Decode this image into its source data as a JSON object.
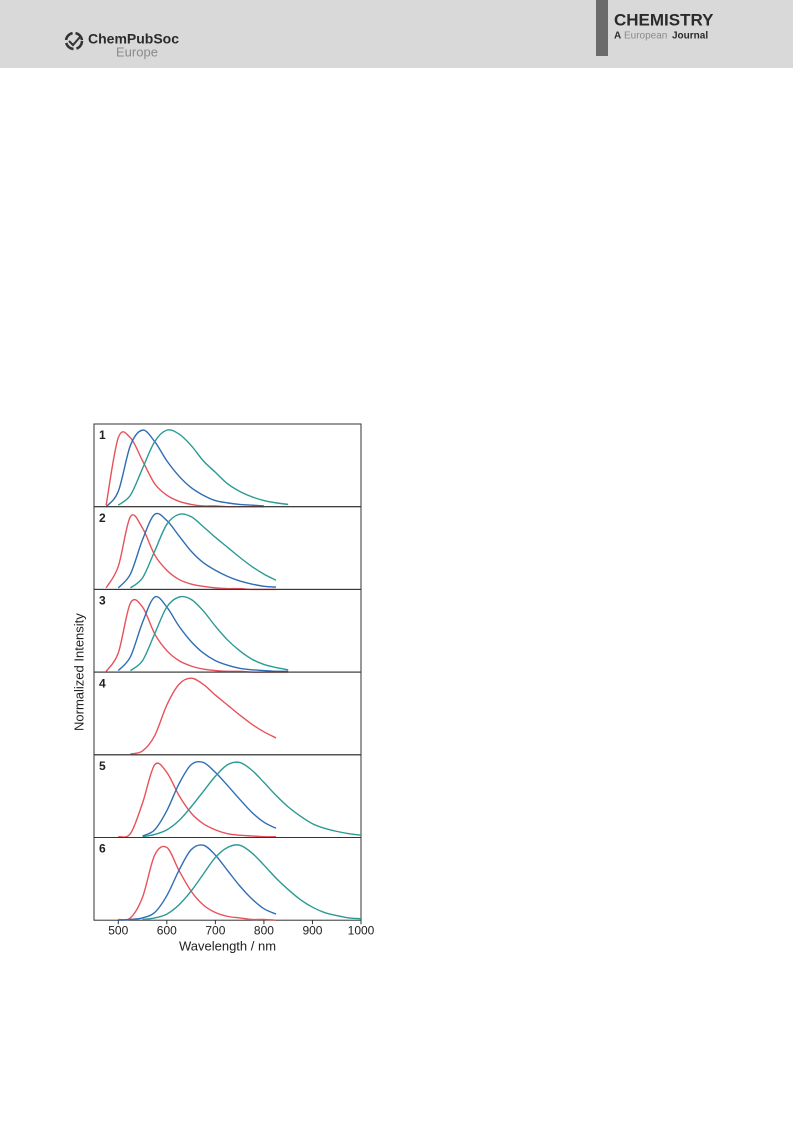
{
  "header": {
    "publisher": "ChemPubSoc",
    "publisher_sub": "Europe",
    "journal": "CHEMISTRY",
    "journal_a": "A",
    "journal_b": "European",
    "journal_c": "Journal"
  },
  "chart_data": [
    {
      "type": "line",
      "title": "1",
      "xlim": [
        450,
        1000
      ],
      "ylim": [
        0,
        1.08
      ],
      "x": [
        475,
        500,
        525,
        550,
        575,
        600,
        625,
        650,
        675,
        700,
        725,
        750,
        775,
        800,
        825,
        850,
        875,
        900,
        925,
        950,
        975,
        1000
      ],
      "series": [
        {
          "color": "#e8525a",
          "values": [
            0.02,
            0.9,
            0.9,
            0.6,
            0.3,
            0.15,
            0.07,
            0.03,
            0.01,
            0.01,
            0,
            0,
            0,
            0,
            null,
            null,
            null,
            null,
            null,
            null,
            null,
            null
          ]
        },
        {
          "color": "#2f6db5",
          "values": [
            0,
            0.2,
            0.8,
            1.0,
            0.85,
            0.6,
            0.4,
            0.25,
            0.15,
            0.08,
            0.05,
            0.03,
            0.02,
            0.01,
            null,
            null,
            null,
            null,
            null,
            null,
            null,
            null
          ]
        },
        {
          "color": "#2a9a94",
          "values": [
            null,
            0.02,
            0.15,
            0.5,
            0.85,
            1.0,
            0.95,
            0.8,
            0.6,
            0.45,
            0.3,
            0.2,
            0.13,
            0.08,
            0.05,
            0.03,
            null,
            null,
            null,
            null,
            null,
            null
          ]
        }
      ]
    },
    {
      "type": "line",
      "title": "2",
      "xlim": [
        450,
        1000
      ],
      "ylim": [
        0,
        1.08
      ],
      "x": [
        475,
        500,
        525,
        550,
        575,
        600,
        625,
        650,
        675,
        700,
        725,
        750,
        775,
        800,
        825,
        850,
        875,
        900,
        925,
        950,
        975,
        1000
      ],
      "series": [
        {
          "color": "#e8525a",
          "values": [
            0.02,
            0.3,
            0.95,
            0.8,
            0.45,
            0.25,
            0.13,
            0.07,
            0.04,
            0.02,
            0.01,
            0.01,
            0,
            0,
            0,
            null,
            null,
            null,
            null,
            null,
            null,
            null
          ]
        },
        {
          "color": "#2f6db5",
          "values": [
            null,
            0.02,
            0.2,
            0.65,
            0.98,
            0.9,
            0.7,
            0.5,
            0.35,
            0.25,
            0.17,
            0.11,
            0.07,
            0.04,
            0.03,
            null,
            null,
            null,
            null,
            null,
            null,
            null
          ]
        },
        {
          "color": "#2a9a94",
          "values": [
            null,
            null,
            0.02,
            0.15,
            0.5,
            0.85,
            0.98,
            0.95,
            0.82,
            0.68,
            0.55,
            0.42,
            0.3,
            0.2,
            0.12,
            null,
            null,
            null,
            null,
            null,
            null,
            null
          ]
        }
      ]
    },
    {
      "type": "line",
      "title": "3",
      "xlim": [
        450,
        1000
      ],
      "ylim": [
        0,
        1.08
      ],
      "x": [
        475,
        500,
        525,
        550,
        575,
        600,
        625,
        650,
        675,
        700,
        725,
        750,
        775,
        800,
        825,
        850,
        875,
        900,
        925,
        950,
        975,
        1000
      ],
      "series": [
        {
          "color": "#e8525a",
          "values": [
            0.01,
            0.25,
            0.9,
            0.85,
            0.5,
            0.28,
            0.15,
            0.08,
            0.04,
            0.02,
            0.01,
            0.01,
            0,
            0,
            0,
            0,
            null,
            null,
            null,
            null,
            null,
            null
          ]
        },
        {
          "color": "#2f6db5",
          "values": [
            null,
            0.02,
            0.2,
            0.65,
            0.98,
            0.85,
            0.6,
            0.4,
            0.25,
            0.15,
            0.09,
            0.05,
            0.03,
            0.02,
            0.01,
            0.01,
            null,
            null,
            null,
            null,
            null,
            null
          ]
        },
        {
          "color": "#2a9a94",
          "values": [
            null,
            null,
            0.02,
            0.15,
            0.5,
            0.85,
            0.98,
            0.95,
            0.8,
            0.6,
            0.42,
            0.28,
            0.17,
            0.1,
            0.06,
            0.03,
            null,
            null,
            null,
            null,
            null,
            null
          ]
        }
      ]
    },
    {
      "type": "line",
      "title": "4",
      "ylabel": "Normalized Intensity",
      "xlim": [
        450,
        1000
      ],
      "ylim": [
        0,
        1.08
      ],
      "x": [
        475,
        500,
        525,
        550,
        575,
        600,
        625,
        650,
        675,
        700,
        725,
        750,
        775,
        800,
        825,
        850,
        875,
        900,
        925,
        950,
        975,
        1000
      ],
      "series": [
        {
          "color": "#e8525a",
          "values": [
            null,
            null,
            0.01,
            0.05,
            0.25,
            0.65,
            0.92,
            1.0,
            0.92,
            0.78,
            0.65,
            0.52,
            0.4,
            0.3,
            0.22,
            null,
            null,
            null,
            null,
            null,
            null,
            null
          ]
        }
      ]
    },
    {
      "type": "line",
      "title": "5",
      "xlim": [
        450,
        1000
      ],
      "ylim": [
        0,
        1.08
      ],
      "x": [
        475,
        500,
        525,
        550,
        575,
        600,
        625,
        650,
        675,
        700,
        725,
        750,
        775,
        800,
        825,
        850,
        875,
        900,
        925,
        950,
        975,
        1000
      ],
      "series": [
        {
          "color": "#e8525a",
          "values": [
            null,
            0.01,
            0.05,
            0.45,
            0.95,
            0.85,
            0.55,
            0.32,
            0.18,
            0.1,
            0.05,
            0.03,
            0.02,
            0.01,
            0.01,
            null,
            null,
            null,
            null,
            null,
            null,
            null
          ]
        },
        {
          "color": "#2f6db5",
          "values": [
            null,
            null,
            null,
            0.02,
            0.1,
            0.35,
            0.7,
            0.95,
            0.98,
            0.85,
            0.68,
            0.5,
            0.33,
            0.2,
            0.12,
            null,
            null,
            null,
            null,
            null,
            null,
            null
          ]
        },
        {
          "color": "#2a9a94",
          "values": [
            null,
            null,
            null,
            0.01,
            0.04,
            0.1,
            0.22,
            0.4,
            0.6,
            0.8,
            0.95,
            0.98,
            0.88,
            0.72,
            0.55,
            0.4,
            0.28,
            0.18,
            0.12,
            0.08,
            0.05,
            0.03
          ]
        }
      ]
    },
    {
      "type": "line",
      "title": "6",
      "xlabel": "Wavelength / nm",
      "xlim": [
        450,
        1000
      ],
      "ylim": [
        0,
        1.08
      ],
      "xticks": [
        500,
        600,
        700,
        800,
        900,
        1000
      ],
      "x": [
        475,
        500,
        525,
        550,
        575,
        600,
        625,
        650,
        675,
        700,
        725,
        750,
        775,
        800,
        825,
        850,
        875,
        900,
        925,
        950,
        975,
        1000
      ],
      "series": [
        {
          "color": "#e8525a",
          "values": [
            null,
            0.01,
            0.03,
            0.3,
            0.85,
            0.95,
            0.65,
            0.38,
            0.2,
            0.1,
            0.05,
            0.03,
            0.01,
            0.01,
            0,
            null,
            null,
            null,
            null,
            null,
            null,
            null
          ]
        },
        {
          "color": "#2f6db5",
          "values": [
            null,
            0,
            0.01,
            0.03,
            0.1,
            0.32,
            0.65,
            0.92,
            0.98,
            0.85,
            0.65,
            0.45,
            0.28,
            0.15,
            0.08,
            null,
            null,
            null,
            null,
            null,
            null,
            null
          ]
        },
        {
          "color": "#2a9a94",
          "values": [
            null,
            null,
            null,
            0.01,
            0.03,
            0.08,
            0.2,
            0.38,
            0.6,
            0.82,
            0.95,
            0.98,
            0.88,
            0.72,
            0.55,
            0.4,
            0.27,
            0.17,
            0.1,
            0.06,
            0.03,
            0.02
          ]
        }
      ]
    }
  ]
}
